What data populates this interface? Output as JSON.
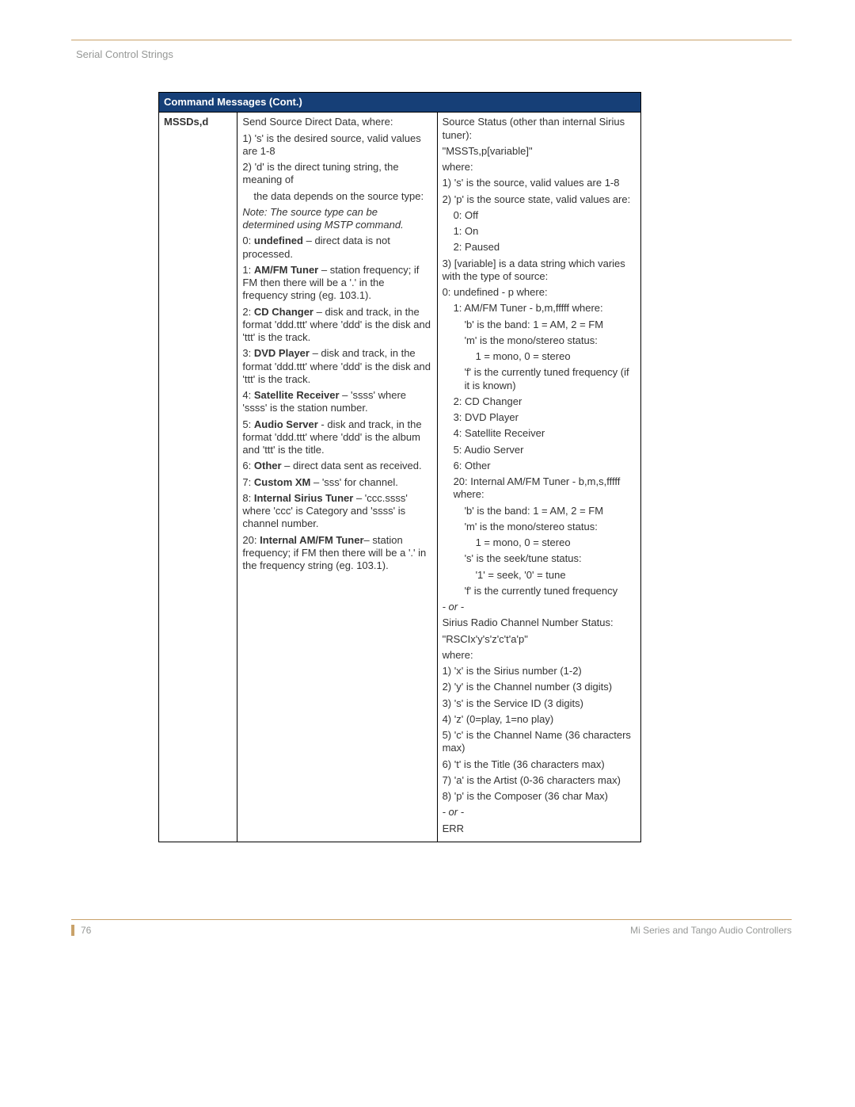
{
  "section_title": "Serial Control Strings",
  "table_header": "Command Messages (Cont.)",
  "command": "MSSDs,d",
  "desc": {
    "intro": "Send Source Direct Data, where:",
    "l1": "1) 's' is the desired source, valid values are 1-8",
    "l2a": "2) 'd' is the direct tuning string, the meaning of",
    "l2b": "the data depends on the source type:",
    "note": "Note: The source type can be determined using MSTP command.",
    "t0a": "0: ",
    "t0b": "undefined",
    "t0c": " – direct data is not processed.",
    "t1a": "1: ",
    "t1b": "AM/FM Tuner",
    "t1c": " – station frequency; if FM then there will be a '.' in the frequency string (eg. 103.1).",
    "t2a": "2: ",
    "t2b": "CD Changer",
    "t2c": " – disk and track, in the format 'ddd.ttt' where 'ddd' is the disk and 'ttt' is the track.",
    "t3a": "3: ",
    "t3b": "DVD Player",
    "t3c": " – disk and track, in the format 'ddd.ttt' where 'ddd' is the disk and 'ttt' is the track.",
    "t4a": "4: ",
    "t4b": "Satellite Receiver",
    "t4c": " – 'ssss' where 'ssss' is the station number.",
    "t5a": "5: ",
    "t5b": "Audio Server",
    "t5c": " - disk and track, in the format 'ddd.ttt' where 'ddd' is the album and 'ttt' is the title.",
    "t6a": "6: ",
    "t6b": "Other",
    "t6c": " – direct data sent as received.",
    "t7a": "7: ",
    "t7b": "Custom XM",
    "t7c": " – 'sss' for channel.",
    "t8a": "8: ",
    "t8b": "Internal Sirius Tuner",
    "t8c": " – 'ccc.ssss' where 'ccc' is Category and 'ssss' is channel number.",
    "t20a": "20: ",
    "t20b": "Internal AM/FM Tuner",
    "t20c": "– station frequency; if FM then there will be a '.' in the frequency string (eg. 103.1)."
  },
  "resp": {
    "r1": "Source Status (other than internal Sirius tuner):",
    "r2": "\"MSSTs,p[variable]\"",
    "r3": "where:",
    "r4": "1) 's' is the source, valid values are 1-8",
    "r5": "2) 'p' is the source state, valid values are:",
    "r5a": "0: Off",
    "r5b": "1: On",
    "r5c": "2: Paused",
    "r6": "3) [variable] is a data string which varies with the type of source:",
    "r6a": "0: undefined - p where:",
    "r6b": "1: AM/FM Tuner - b,m,fffff where:",
    "r6c": "'b' is the band: 1 = AM, 2 = FM",
    "r6d": "'m' is the mono/stereo status:",
    "r6e": "1 =   mono, 0 = stereo",
    "r6f": "'f' is the currently tuned frequency (if it is known)",
    "r6g": "2: CD Changer",
    "r6h": "3: DVD Player",
    "r6i": "4: Satellite Receiver",
    "r6j": "5: Audio Server",
    "r6k": "6: Other",
    "r6l": "20: Internal AM/FM Tuner - b,m,s,fffff where:",
    "r6m": "'b' is the band: 1 = AM, 2 = FM",
    "r6n": "'m' is the mono/stereo status:",
    "r6o": "1 = mono, 0 = stereo",
    "r6p": "'s' is the seek/tune status:",
    "r6q": "'1' = seek, '0' = tune",
    "r6r": "'f' is the currently tuned frequency",
    "or": "- or -",
    "s1": "Sirius Radio Channel Number Status:",
    "s2": "\"RSCIx'y's'z'c't'a'p\"",
    "s3": "where:",
    "s4": "1) 'x' is the Sirius number (1-2)",
    "s5": "2) 'y' is the Channel number (3 digits)",
    "s6": "3) 's' is the Service ID (3 digits)",
    "s7": "4) 'z' (0=play, 1=no play)",
    "s8": "5) 'c' is the Channel Name (36 characters max)",
    "s9": "6) 't' is the Title (36 characters max)",
    "s10": "7) 'a' is the Artist (0-36 characters max)",
    "s11": "8) 'p' is the Composer (36 char Max)",
    "err": "ERR"
  },
  "footer": {
    "page": "76",
    "book": "Mi Series and Tango Audio Controllers"
  }
}
